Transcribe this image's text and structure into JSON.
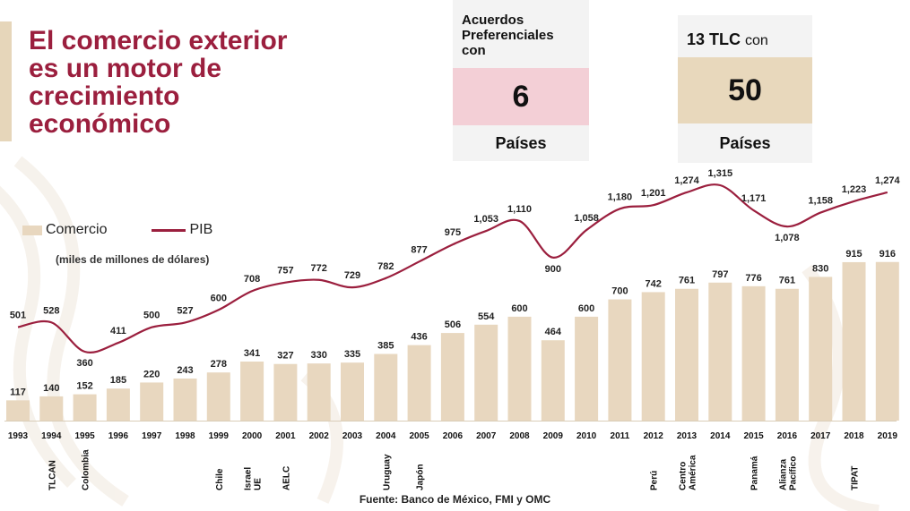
{
  "title": "El comercio exterior\nes un motor de\ncrecimiento\neconómico",
  "cards": [
    {
      "header": "Acuerdos\nPreferenciales\ncon",
      "value": "6",
      "footer": "Países",
      "accent": "#f3cfd6"
    },
    {
      "header": "13 TLC",
      "header_suffix": "con",
      "value": "50",
      "footer": "Países",
      "accent": "#e8d8bc"
    }
  ],
  "legend": {
    "comercio": "Comercio",
    "pib": "PIB"
  },
  "units": "(miles de millones de dólares)",
  "source": "Fuente: Banco de México, FMI y OMC",
  "colors": {
    "title": "#9b1f3e",
    "bar": "#e8d7bf",
    "line": "#9b1f3e"
  },
  "chart_data": {
    "type": "bar",
    "categories": [
      "1993",
      "1994",
      "1995",
      "1996",
      "1997",
      "1998",
      "1999",
      "2000",
      "2001",
      "2002",
      "2003",
      "2004",
      "2005",
      "2006",
      "2007",
      "2008",
      "2009",
      "2010",
      "2011",
      "2012",
      "2013",
      "2014",
      "2015",
      "2016",
      "2017",
      "2018",
      "2019"
    ],
    "series": [
      {
        "name": "Comercio",
        "type": "bar",
        "values": [
          117,
          140,
          152,
          185,
          220,
          243,
          278,
          341,
          327,
          330,
          335,
          385,
          436,
          506,
          554,
          600,
          464,
          600,
          700,
          742,
          761,
          797,
          776,
          761,
          830,
          915,
          916
        ],
        "labels": [
          "117",
          "140",
          "152",
          "185",
          "220",
          "243",
          "278",
          "341",
          "327",
          "330",
          "335",
          "385",
          "436",
          "506",
          "554",
          "600",
          "464",
          "600",
          "700",
          "742",
          "761",
          "797",
          "776",
          "761",
          "830",
          "915",
          "916"
        ]
      },
      {
        "name": "PIB",
        "type": "line",
        "values": [
          501,
          528,
          360,
          411,
          500,
          527,
          600,
          708,
          757,
          772,
          729,
          782,
          877,
          975,
          1053,
          1110,
          900,
          1058,
          1180,
          1201,
          1274,
          1315,
          1171,
          1078,
          1158,
          1223,
          1274
        ],
        "labels": [
          "501",
          "528",
          "360",
          "411",
          "500",
          "527",
          "600",
          "708",
          "757",
          "772",
          "729",
          "782",
          "877",
          "975",
          "1,053",
          "1,110",
          "900",
          "1,058",
          "1,180",
          "1,201",
          "1,274",
          "1,315",
          "1,171",
          "1,078",
          "1,158",
          "1,223",
          "1,274"
        ]
      }
    ],
    "agreements": [
      {
        "year": "1994",
        "lines": [
          "TLCAN"
        ]
      },
      {
        "year": "1995",
        "lines": [
          "Colombia"
        ]
      },
      {
        "year": "1999",
        "lines": [
          "Chile"
        ]
      },
      {
        "year": "2000",
        "lines": [
          "Israel",
          "UE"
        ]
      },
      {
        "year": "2001",
        "lines": [
          "AELC"
        ]
      },
      {
        "year": "2004",
        "lines": [
          "Uruguay"
        ]
      },
      {
        "year": "2005",
        "lines": [
          "Japón"
        ]
      },
      {
        "year": "2012",
        "lines": [
          "Perú"
        ]
      },
      {
        "year": "2013",
        "lines": [
          "Centro",
          "América"
        ]
      },
      {
        "year": "2015",
        "lines": [
          "Panamá"
        ]
      },
      {
        "year": "2016",
        "lines": [
          "Alianza",
          "Pacífico"
        ]
      },
      {
        "year": "2018",
        "lines": [
          "TIPAT"
        ]
      }
    ]
  }
}
